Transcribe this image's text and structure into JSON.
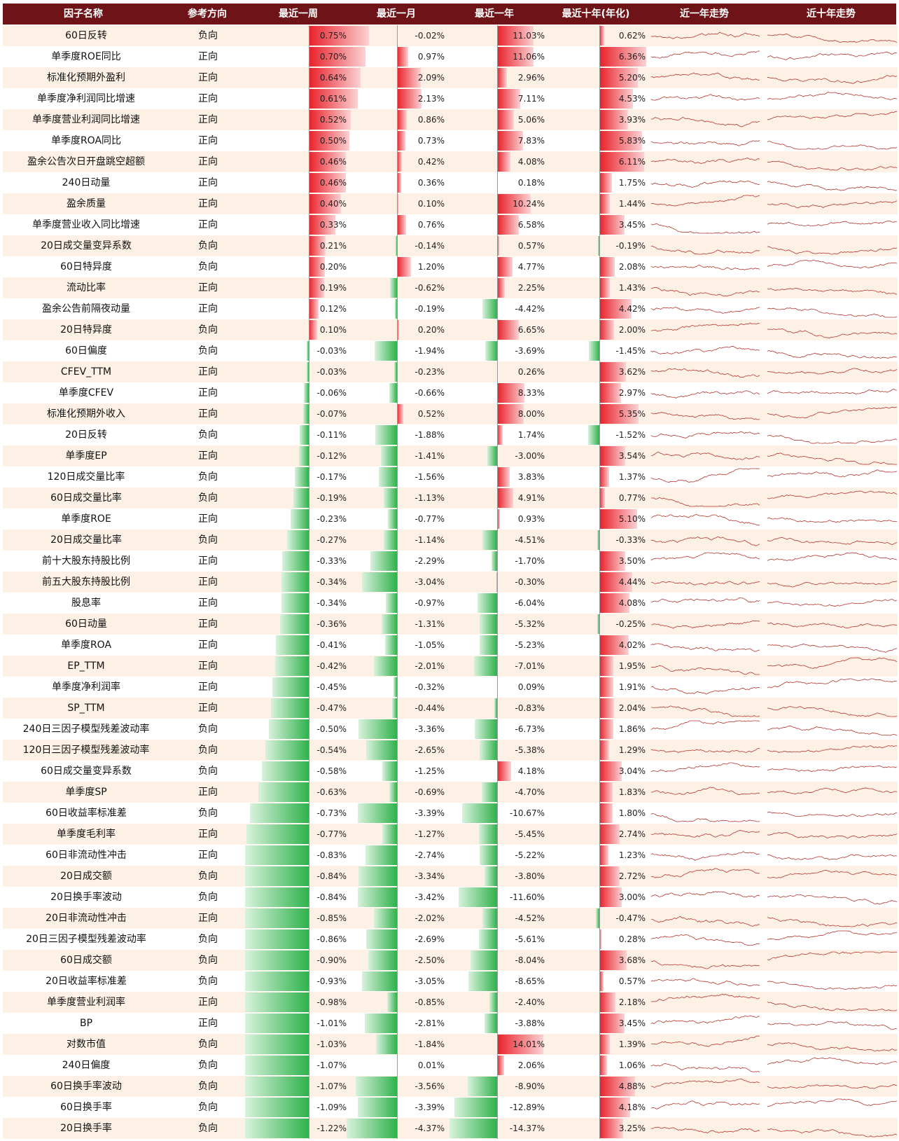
{
  "colors": {
    "header_bg": "#6e1418",
    "row_alt": "#fdf1e6",
    "positive": "#e8202a",
    "negative": "#2fb24c",
    "spark": "#b5352c"
  },
  "chart_data": {
    "type": "table",
    "columns": [
      "因子名称",
      "参考方向",
      "最近一周",
      "最近一月",
      "最近一年",
      "最近十年(年化)",
      "近一年走势",
      "近十年走势"
    ],
    "rows": [
      {
        "name": "60日反转",
        "dir": "负向",
        "week": "0.75%",
        "month": "-0.02%",
        "year": "11.03%",
        "decade": "0.62%"
      },
      {
        "name": "单季度ROE同比",
        "dir": "正向",
        "week": "0.70%",
        "month": "0.97%",
        "year": "11.06%",
        "decade": "6.36%"
      },
      {
        "name": "标准化预期外盈利",
        "dir": "正向",
        "week": "0.64%",
        "month": "2.09%",
        "year": "2.96%",
        "decade": "5.20%"
      },
      {
        "name": "单季度净利润同比增速",
        "dir": "正向",
        "week": "0.61%",
        "month": "2.13%",
        "year": "7.11%",
        "decade": "4.53%"
      },
      {
        "name": "单季度营业利润同比增速",
        "dir": "正向",
        "week": "0.52%",
        "month": "0.86%",
        "year": "5.06%",
        "decade": "3.93%"
      },
      {
        "name": "单季度ROA同比",
        "dir": "正向",
        "week": "0.50%",
        "month": "0.73%",
        "year": "7.83%",
        "decade": "5.83%"
      },
      {
        "name": "盈余公告次日开盘跳空超额",
        "dir": "正向",
        "week": "0.46%",
        "month": "0.42%",
        "year": "4.08%",
        "decade": "6.11%"
      },
      {
        "name": "240日动量",
        "dir": "正向",
        "week": "0.46%",
        "month": "0.36%",
        "year": "0.18%",
        "decade": "1.75%"
      },
      {
        "name": "盈余质量",
        "dir": "正向",
        "week": "0.40%",
        "month": "0.10%",
        "year": "10.24%",
        "decade": "1.44%"
      },
      {
        "name": "单季度营业收入同比增速",
        "dir": "正向",
        "week": "0.33%",
        "month": "0.76%",
        "year": "6.58%",
        "decade": "3.45%"
      },
      {
        "name": "20日成交量变异系数",
        "dir": "负向",
        "week": "0.21%",
        "month": "-0.14%",
        "year": "0.57%",
        "decade": "-0.19%"
      },
      {
        "name": "60日特异度",
        "dir": "负向",
        "week": "0.20%",
        "month": "1.20%",
        "year": "4.77%",
        "decade": "2.08%"
      },
      {
        "name": "流动比率",
        "dir": "正向",
        "week": "0.19%",
        "month": "-0.62%",
        "year": "2.25%",
        "decade": "1.43%"
      },
      {
        "name": "盈余公告前隔夜动量",
        "dir": "正向",
        "week": "0.12%",
        "month": "-0.19%",
        "year": "-4.42%",
        "decade": "4.42%"
      },
      {
        "name": "20日特异度",
        "dir": "负向",
        "week": "0.10%",
        "month": "0.20%",
        "year": "6.65%",
        "decade": "2.00%"
      },
      {
        "name": "60日偏度",
        "dir": "负向",
        "week": "-0.03%",
        "month": "-1.94%",
        "year": "-3.69%",
        "decade": "-1.45%"
      },
      {
        "name": "CFEV_TTM",
        "dir": "正向",
        "week": "-0.03%",
        "month": "-0.23%",
        "year": "0.26%",
        "decade": "3.62%"
      },
      {
        "name": "单季度CFEV",
        "dir": "正向",
        "week": "-0.06%",
        "month": "-0.66%",
        "year": "8.33%",
        "decade": "2.97%"
      },
      {
        "name": "标准化预期外收入",
        "dir": "正向",
        "week": "-0.07%",
        "month": "0.52%",
        "year": "8.00%",
        "decade": "5.35%"
      },
      {
        "name": "20日反转",
        "dir": "负向",
        "week": "-0.11%",
        "month": "-1.88%",
        "year": "1.74%",
        "decade": "-1.52%"
      },
      {
        "name": "单季度EP",
        "dir": "正向",
        "week": "-0.12%",
        "month": "-1.41%",
        "year": "-3.00%",
        "decade": "3.54%"
      },
      {
        "name": "120日成交量比率",
        "dir": "负向",
        "week": "-0.17%",
        "month": "-1.56%",
        "year": "3.83%",
        "decade": "1.37%"
      },
      {
        "name": "60日成交量比率",
        "dir": "负向",
        "week": "-0.19%",
        "month": "-1.13%",
        "year": "4.91%",
        "decade": "0.77%"
      },
      {
        "name": "单季度ROE",
        "dir": "正向",
        "week": "-0.23%",
        "month": "-0.77%",
        "year": "0.93%",
        "decade": "5.10%"
      },
      {
        "name": "20日成交量比率",
        "dir": "负向",
        "week": "-0.27%",
        "month": "-1.14%",
        "year": "-4.51%",
        "decade": "-0.33%"
      },
      {
        "name": "前十大股东持股比例",
        "dir": "正向",
        "week": "-0.33%",
        "month": "-2.29%",
        "year": "-1.70%",
        "decade": "3.50%"
      },
      {
        "name": "前五大股东持股比例",
        "dir": "正向",
        "week": "-0.34%",
        "month": "-3.04%",
        "year": "-0.30%",
        "decade": "4.44%"
      },
      {
        "name": "股息率",
        "dir": "正向",
        "week": "-0.34%",
        "month": "-0.97%",
        "year": "-6.04%",
        "decade": "4.08%"
      },
      {
        "name": "60日动量",
        "dir": "正向",
        "week": "-0.36%",
        "month": "-1.31%",
        "year": "-5.32%",
        "decade": "-0.25%"
      },
      {
        "name": "单季度ROA",
        "dir": "正向",
        "week": "-0.41%",
        "month": "-1.05%",
        "year": "-5.23%",
        "decade": "4.02%"
      },
      {
        "name": "EP_TTM",
        "dir": "正向",
        "week": "-0.42%",
        "month": "-2.01%",
        "year": "-7.01%",
        "decade": "1.95%"
      },
      {
        "name": "单季度净利润率",
        "dir": "正向",
        "week": "-0.45%",
        "month": "-0.32%",
        "year": "0.09%",
        "decade": "1.91%"
      },
      {
        "name": "SP_TTM",
        "dir": "正向",
        "week": "-0.47%",
        "month": "-0.44%",
        "year": "-0.83%",
        "decade": "2.04%"
      },
      {
        "name": "240日三因子模型残差波动率",
        "dir": "负向",
        "week": "-0.50%",
        "month": "-3.36%",
        "year": "-6.73%",
        "decade": "1.86%"
      },
      {
        "name": "120日三因子模型残差波动率",
        "dir": "负向",
        "week": "-0.54%",
        "month": "-2.65%",
        "year": "-5.38%",
        "decade": "1.29%"
      },
      {
        "name": "60日成交量变异系数",
        "dir": "负向",
        "week": "-0.58%",
        "month": "-1.25%",
        "year": "4.18%",
        "decade": "3.04%"
      },
      {
        "name": "单季度SP",
        "dir": "正向",
        "week": "-0.63%",
        "month": "-0.69%",
        "year": "-4.70%",
        "decade": "1.83%"
      },
      {
        "name": "60日收益率标准差",
        "dir": "负向",
        "week": "-0.73%",
        "month": "-3.39%",
        "year": "-10.67%",
        "decade": "1.80%"
      },
      {
        "name": "单季度毛利率",
        "dir": "正向",
        "week": "-0.77%",
        "month": "-1.27%",
        "year": "-5.45%",
        "decade": "2.74%"
      },
      {
        "name": "60日非流动性冲击",
        "dir": "正向",
        "week": "-0.83%",
        "month": "-2.74%",
        "year": "-5.22%",
        "decade": "1.23%"
      },
      {
        "name": "20日成交额",
        "dir": "负向",
        "week": "-0.84%",
        "month": "-3.34%",
        "year": "-3.80%",
        "decade": "2.72%"
      },
      {
        "name": "20日换手率波动",
        "dir": "负向",
        "week": "-0.84%",
        "month": "-3.42%",
        "year": "-11.60%",
        "decade": "3.00%"
      },
      {
        "name": "20日非流动性冲击",
        "dir": "正向",
        "week": "-0.85%",
        "month": "-2.02%",
        "year": "-4.52%",
        "decade": "-0.47%"
      },
      {
        "name": "20日三因子模型残差波动率",
        "dir": "负向",
        "week": "-0.86%",
        "month": "-2.69%",
        "year": "-5.61%",
        "decade": "0.28%"
      },
      {
        "name": "60日成交额",
        "dir": "负向",
        "week": "-0.90%",
        "month": "-2.50%",
        "year": "-8.04%",
        "decade": "3.68%"
      },
      {
        "name": "20日收益率标准差",
        "dir": "负向",
        "week": "-0.93%",
        "month": "-3.05%",
        "year": "-8.65%",
        "decade": "0.57%"
      },
      {
        "name": "单季度营业利润率",
        "dir": "正向",
        "week": "-0.98%",
        "month": "-0.85%",
        "year": "-2.40%",
        "decade": "2.18%"
      },
      {
        "name": "BP",
        "dir": "正向",
        "week": "-1.01%",
        "month": "-2.81%",
        "year": "-3.88%",
        "decade": "3.45%"
      },
      {
        "name": "对数市值",
        "dir": "负向",
        "week": "-1.03%",
        "month": "-1.84%",
        "year": "14.01%",
        "decade": "1.39%"
      },
      {
        "name": "240日偏度",
        "dir": "负向",
        "week": "-1.07%",
        "month": "0.01%",
        "year": "2.06%",
        "decade": "1.06%"
      },
      {
        "name": "60日换手率波动",
        "dir": "负向",
        "week": "-1.07%",
        "month": "-3.56%",
        "year": "-8.90%",
        "decade": "4.88%"
      },
      {
        "name": "60日换手率",
        "dir": "负向",
        "week": "-1.09%",
        "month": "-3.39%",
        "year": "-12.89%",
        "decade": "4.18%"
      },
      {
        "name": "20日换手率",
        "dir": "负向",
        "week": "-1.22%",
        "month": "-4.37%",
        "year": "-14.37%",
        "decade": "3.25%"
      }
    ]
  }
}
